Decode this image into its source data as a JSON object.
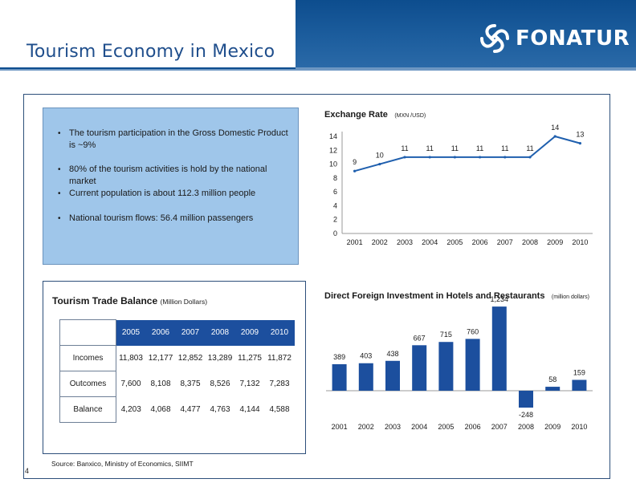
{
  "header": {
    "title": "Tourism Economy in Mexico",
    "logo_text": "FONATUR"
  },
  "colors": {
    "brand_blue": "#0d4d8e",
    "panel_blue": "#9fc6ea",
    "bar_blue": "#1c4f9e",
    "line_blue": "#1f5fae"
  },
  "bullets": [
    "The tourism participation in the Gross Domestic Product is ~9%",
    "80% of the tourism activities is hold by the national market",
    "Current population is about 112.3 million people",
    "National tourism flows: 56.4 million passengers"
  ],
  "trade_balance": {
    "title": "Tourism Trade Balance",
    "unit": "(Million Dollars)",
    "years": [
      "2005",
      "2006",
      "2007",
      "2008",
      "2009",
      "2010"
    ],
    "rows": [
      {
        "label": "Incomes",
        "values": [
          "11,803",
          "12,177",
          "12,852",
          "13,289",
          "11,275",
          "11,872"
        ]
      },
      {
        "label": "Outcomes",
        "values": [
          "7,600",
          "8,108",
          "8,375",
          "8,526",
          "7,132",
          "7,283"
        ]
      },
      {
        "label": "Balance",
        "values": [
          "4,203",
          "4,068",
          "4,477",
          "4,763",
          "4,144",
          "4,588"
        ]
      }
    ]
  },
  "source": "Source: Banxico, Ministry of Economics, SIIMT",
  "page_number": "4",
  "chart_data": [
    {
      "type": "line",
      "title": "Exchange Rate",
      "unit": "(MXN /USD)",
      "categories": [
        "2001",
        "2002",
        "2003",
        "2004",
        "2005",
        "2006",
        "2007",
        "2008",
        "2009",
        "2010"
      ],
      "values": [
        9,
        10,
        11,
        11,
        11,
        11,
        11,
        11,
        14,
        13
      ],
      "labels": [
        "9",
        "10",
        "11",
        "11",
        "11",
        "11",
        "11",
        "11",
        "14",
        "13"
      ],
      "yticks": [
        "0",
        "2",
        "4",
        "6",
        "8",
        "10",
        "12",
        "14"
      ],
      "ylim": [
        0,
        14
      ]
    },
    {
      "type": "bar",
      "title": "Direct Foreign Investment in Hotels and Restaurants",
      "unit": "(million dollars)",
      "categories": [
        "2001",
        "2002",
        "2003",
        "2004",
        "2005",
        "2006",
        "2007",
        "2008",
        "2009",
        "2010"
      ],
      "values": [
        389,
        403,
        438,
        667,
        715,
        760,
        1234,
        -248,
        58,
        159
      ],
      "labels": [
        "389",
        "403",
        "438",
        "667",
        "715",
        "760",
        "1,234",
        "-248",
        "58",
        "159"
      ]
    }
  ]
}
